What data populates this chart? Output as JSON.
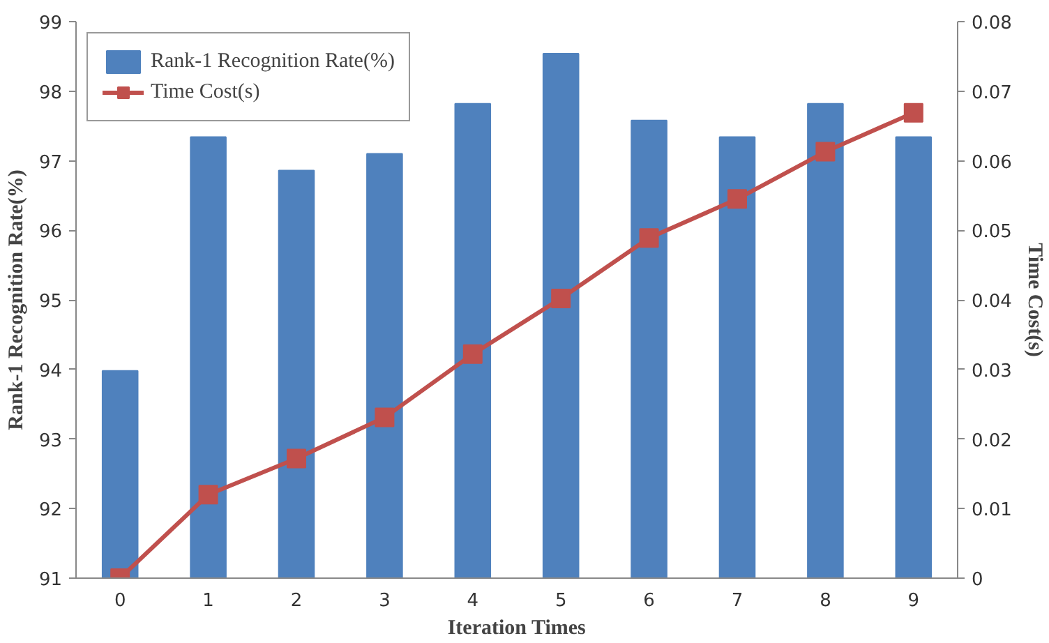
{
  "chart_data": {
    "type": "bar",
    "xlabel": "Iteration Times",
    "ylabel": "Rank-1 Recognition Rate(%)",
    "y2label": "Time Cost(s)",
    "categories": [
      "0",
      "1",
      "2",
      "3",
      "4",
      "5",
      "6",
      "7",
      "8",
      "9"
    ],
    "series": [
      {
        "name": "Rank-1 Recognition Rate(%)",
        "color": "#4f81bd",
        "values": [
          93.98,
          97.34,
          96.86,
          97.1,
          97.82,
          98.54,
          97.58,
          97.34,
          97.82,
          97.34
        ]
      },
      {
        "name": "Time Cost(s)",
        "type": "line",
        "axis": "y2",
        "color": "#c0504d",
        "marker": "square",
        "values": [
          0,
          0.012,
          0.0172,
          0.0231,
          0.0322,
          0.0402,
          0.0489,
          0.0545,
          0.0613,
          0.0669
        ]
      }
    ],
    "ylim": [
      91,
      99
    ],
    "yticks": [
      91,
      92,
      93,
      94,
      95,
      96,
      97,
      98,
      99
    ],
    "y2lim": [
      0,
      0.08
    ],
    "y2ticks": [
      0,
      0.01,
      0.02,
      0.03,
      0.04,
      0.05,
      0.06,
      0.07,
      0.08
    ],
    "grid": false,
    "legend": "top left"
  }
}
